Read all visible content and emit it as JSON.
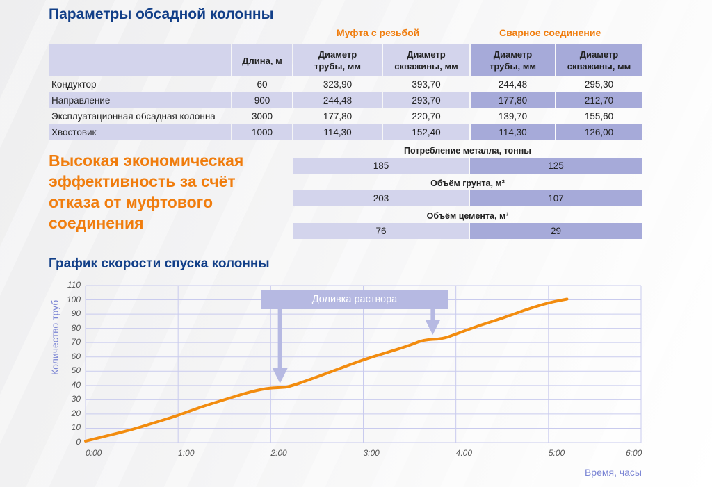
{
  "title": "Параметры обсадной колонны",
  "groups": {
    "coupling": "Муфта с резьбой",
    "welded": "Сварное соединение"
  },
  "table": {
    "headers": [
      "",
      "Длина, м",
      "Диаметр трубы, мм",
      "Диаметр скважины, мм",
      "Диаметр трубы, мм",
      "Диаметр скважины, мм"
    ],
    "header_lines": {
      "length": "Длина, м",
      "d1a": "Диаметр",
      "d1b": "трубы, мм",
      "d2a": "Диаметр",
      "d2b": "скважины, мм",
      "d3a": "Диаметр",
      "d3b": "трубы, мм",
      "d4a": "Диаметр",
      "d4b": "скважины, мм"
    },
    "rows": [
      {
        "name": "Кондуктор",
        "length": "60",
        "pipe_coupling": "323,90",
        "well_coupling": "393,70",
        "pipe_welded": "244,48",
        "well_welded": "295,30"
      },
      {
        "name": "Направление",
        "length": "900",
        "pipe_coupling": "244,48",
        "well_coupling": "293,70",
        "pipe_welded": "177,80",
        "well_welded": "212,70"
      },
      {
        "name": "Эксплуатационная обсадная колонна",
        "length": "3000",
        "pipe_coupling": "177,80",
        "well_coupling": "220,70",
        "pipe_welded": "139,70",
        "well_welded": "155,60"
      },
      {
        "name": "Хвостовик",
        "length": "1000",
        "pipe_coupling": "114,30",
        "well_coupling": "152,40",
        "pipe_welded": "114,30",
        "well_welded": "126,00"
      }
    ]
  },
  "headline": "Высокая экономическая эффективность за счёт отказа от муфтового соединения",
  "summary": [
    {
      "label": "Потребление металла, тонны",
      "coupling": "185",
      "welded": "125"
    },
    {
      "label": "Объём грунта, м³",
      "coupling": "203",
      "welded": "107"
    },
    {
      "label": "Объём цемента, м³",
      "coupling": "76",
      "welded": "29"
    }
  ],
  "chart_title": "График скорости спуска колонны",
  "colors": {
    "title_blue": "#123f88",
    "accent_orange": "#f07d0e",
    "cell_light": "#d3d4ec",
    "cell_dark": "#a6aad9",
    "axis_label": "#7b85d4",
    "grid": "#c9cbee",
    "line": "#f28c0f"
  },
  "chart_data": {
    "type": "line",
    "title": "График скорости спуска колонны",
    "xlabel": "Время, часы",
    "ylabel": "Количество труб",
    "x_ticks": [
      "0:00",
      "1:00",
      "2:00",
      "3:00",
      "4:00",
      "5:00",
      "6:00"
    ],
    "y_ticks": [
      "0",
      "10",
      "20",
      "30",
      "40",
      "50",
      "60",
      "70",
      "80",
      "90",
      "100",
      "110"
    ],
    "xlim": [
      0,
      6
    ],
    "ylim": [
      0,
      110
    ],
    "grid": true,
    "series": [
      {
        "name": "Количество труб",
        "x": [
          0,
          0.25,
          0.5,
          0.75,
          1.0,
          1.25,
          1.5,
          1.75,
          1.95,
          2.1,
          2.2,
          2.5,
          2.75,
          3.0,
          3.25,
          3.5,
          3.65,
          3.85,
          4.0,
          4.25,
          4.5,
          4.75,
          5.0,
          5.2
        ],
        "y": [
          1,
          5,
          9,
          14,
          19,
          25,
          30,
          35,
          38,
          38.5,
          39,
          46,
          52,
          58,
          63,
          68,
          72,
          72.5,
          76,
          82,
          87,
          93,
          98,
          100.5
        ]
      }
    ],
    "annotations": [
      {
        "text": "Доливка раствора",
        "arrows_at": [
          {
            "x": 2.1,
            "y": 38.5
          },
          {
            "x": 3.75,
            "y": 72.5
          }
        ]
      }
    ]
  }
}
